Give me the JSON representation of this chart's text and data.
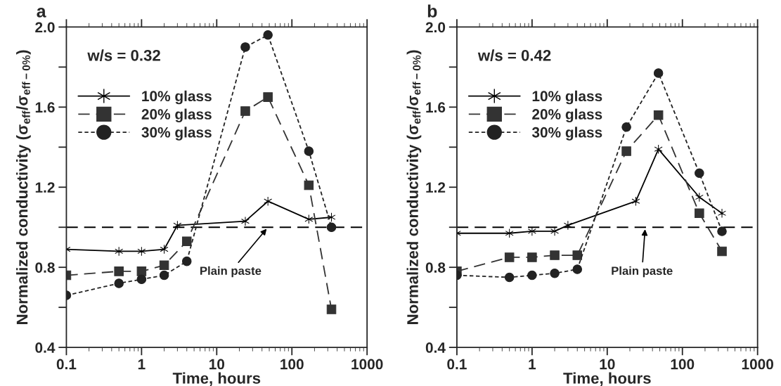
{
  "chart_data": [
    {
      "type": "line",
      "title": "a",
      "xlabel": "Time, hours",
      "ylabel": "Normalized conductivity (σ$_{eff}$/σ$_{eff−0%}$)",
      "log": "x",
      "xlim": [
        0.1,
        1000
      ],
      "xticks": [
        0.1,
        1,
        10,
        100,
        1000
      ],
      "ylim": [
        0.4,
        2.0
      ],
      "yticks": [
        0.4,
        {
          "value": 0.6,
          "label": null
        },
        0.8,
        {
          "value": 1.0,
          "label": null
        },
        1.2,
        {
          "value": 1.4,
          "label": null
        },
        1.6,
        {
          "value": 1.8,
          "label": null
        },
        {
          "value": 2.0,
          "label": "2.0"
        }
      ],
      "legend": "top left",
      "grid": false,
      "annotations": [
        "w/s = 0.32",
        {
          "text": "Plain paste",
          "x": 48,
          "y": 1.0
        }
      ],
      "ref_lines": [
        {
          "axis": "y",
          "value": 1.0,
          "color": "#000000",
          "line_style": "dashed"
        }
      ],
      "series": [
        {
          "name": "10% glass",
          "color": "#000000",
          "marker": "cross",
          "line_style": "solid",
          "x": [
            0.1,
            0.5,
            1,
            2,
            3,
            24,
            48,
            168,
            336
          ],
          "values": [
            0.89,
            0.88,
            0.88,
            0.89,
            1.01,
            1.03,
            1.13,
            1.04,
            1.05
          ]
        },
        {
          "name": "20% glass",
          "color": "#333333",
          "marker": "square",
          "line_style": "dashed",
          "x": [
            0.1,
            0.5,
            1,
            2,
            4,
            24,
            48,
            168,
            336
          ],
          "values": [
            0.76,
            0.78,
            0.78,
            0.81,
            0.93,
            1.58,
            1.65,
            1.21,
            0.59
          ]
        },
        {
          "name": "30% glass",
          "color": "#222222",
          "marker": "circle",
          "line_style": "dotted",
          "x": [
            0.1,
            0.5,
            1,
            2,
            4,
            24,
            48,
            168,
            336
          ],
          "values": [
            0.66,
            0.72,
            0.74,
            0.76,
            0.83,
            1.9,
            1.96,
            1.38,
            1.0
          ]
        }
      ]
    },
    {
      "type": "line",
      "title": "b",
      "xlabel": "Time, hours",
      "ylabel": "Normalized conductivity (σ$_{eff}$/σ$_{eff−0%}$)",
      "log": "x",
      "xlim": [
        0.1,
        1000
      ],
      "xticks": [
        0.1,
        1,
        10,
        100,
        1000
      ],
      "ylim": [
        0.4,
        2.0
      ],
      "yticks": [
        0.4,
        {
          "value": 0.6,
          "label": null
        },
        0.8,
        {
          "value": 1.0,
          "label": null
        },
        1.2,
        {
          "value": 1.4,
          "label": null
        },
        1.6,
        {
          "value": 1.8,
          "label": null
        },
        {
          "value": 2.0,
          "label": "2.0"
        }
      ],
      "legend": "top left",
      "grid": false,
      "annotations": [
        "w/s = 0.42",
        {
          "text": "Plain paste",
          "x": 32,
          "y": 1.0
        }
      ],
      "ref_lines": [
        {
          "axis": "y",
          "value": 1.0,
          "color": "#000000",
          "line_style": "dashed"
        }
      ],
      "series": [
        {
          "name": "10% glass",
          "color": "#000000",
          "marker": "cross",
          "line_style": "solid",
          "x": [
            0.1,
            0.5,
            1,
            2,
            3,
            24,
            48,
            168,
            336
          ],
          "values": [
            0.97,
            0.97,
            0.98,
            0.98,
            1.01,
            1.13,
            1.39,
            1.15,
            1.07
          ]
        },
        {
          "name": "20% glass",
          "color": "#333333",
          "marker": "square",
          "line_style": "dashed",
          "x": [
            0.1,
            0.5,
            1,
            2,
            4,
            18,
            48,
            168,
            336
          ],
          "values": [
            0.78,
            0.85,
            0.85,
            0.86,
            0.86,
            1.38,
            1.56,
            1.07,
            0.88
          ]
        },
        {
          "name": "30% glass",
          "color": "#222222",
          "marker": "circle",
          "line_style": "dotted",
          "x": [
            0.1,
            0.5,
            1,
            2,
            4,
            18,
            48,
            168,
            336
          ],
          "values": [
            0.76,
            0.75,
            0.76,
            0.77,
            0.79,
            1.5,
            1.77,
            1.27,
            0.98
          ]
        }
      ]
    }
  ]
}
